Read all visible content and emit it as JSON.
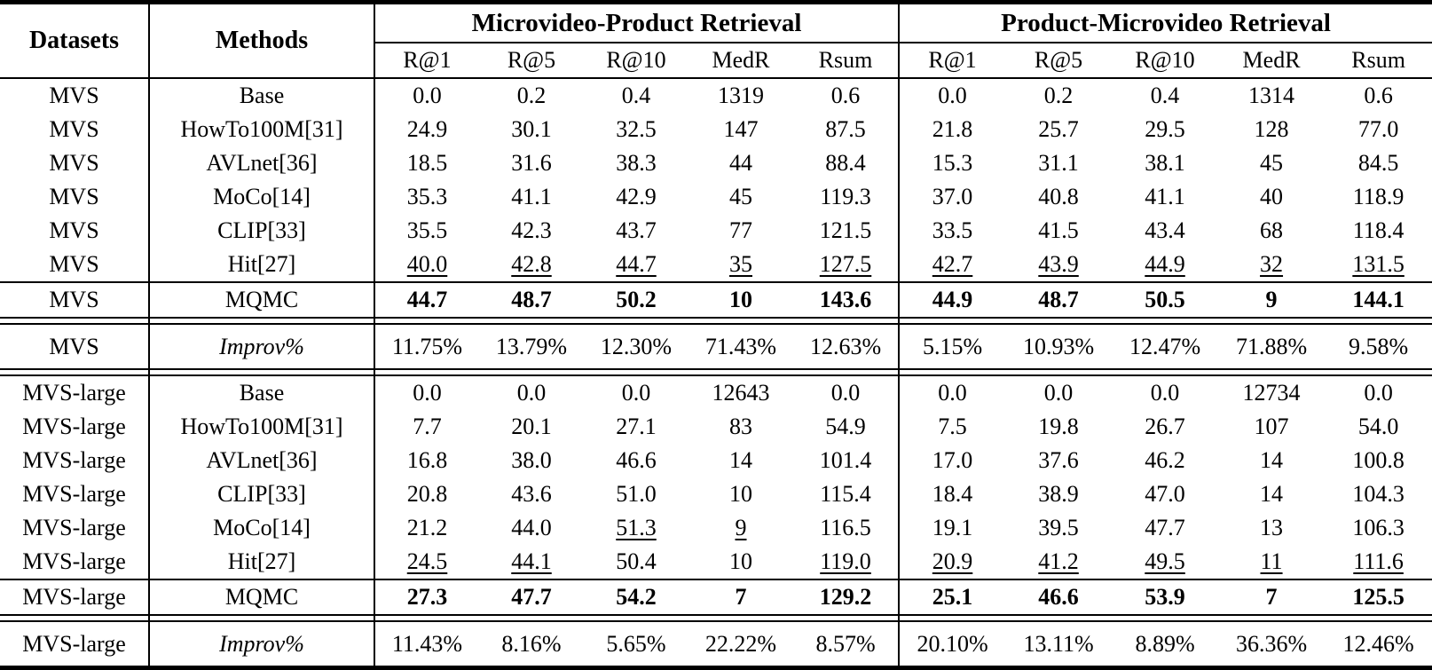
{
  "table": {
    "header": {
      "datasets": "Datasets",
      "methods": "Methods",
      "groups": [
        {
          "title": "Microvideo-Product Retrieval",
          "subcols": [
            "R@1",
            "R@5",
            "R@10",
            "MedR",
            "Rsum"
          ]
        },
        {
          "title": "Product-Microvideo Retrieval",
          "subcols": [
            "R@1",
            "R@5",
            "R@10",
            "MedR",
            "Rsum"
          ]
        }
      ]
    },
    "text_color": "#000000",
    "background_color": "#ffffff",
    "sections": [
      {
        "name": "MVS",
        "rows": [
          {
            "dataset": "MVS",
            "method": "Base",
            "kind": "data",
            "values": [
              "0.0",
              "0.2",
              "0.4",
              "1319",
              "0.6",
              "0.0",
              "0.2",
              "0.4",
              "1314",
              "0.6"
            ]
          },
          {
            "dataset": "MVS",
            "method": "HowTo100M[31]",
            "kind": "data",
            "values": [
              "24.9",
              "30.1",
              "32.5",
              "147",
              "87.5",
              "21.8",
              "25.7",
              "29.5",
              "128",
              "77.0"
            ]
          },
          {
            "dataset": "MVS",
            "method": "AVLnet[36]",
            "kind": "data",
            "values": [
              "18.5",
              "31.6",
              "38.3",
              "44",
              "88.4",
              "15.3",
              "31.1",
              "38.1",
              "45",
              "84.5"
            ]
          },
          {
            "dataset": "MVS",
            "method": "MoCo[14]",
            "kind": "data",
            "values": [
              "35.3",
              "41.1",
              "42.9",
              "45",
              "119.3",
              "37.0",
              "40.8",
              "41.1",
              "40",
              "118.9"
            ]
          },
          {
            "dataset": "MVS",
            "method": "CLIP[33]",
            "kind": "data",
            "values": [
              "35.5",
              "42.3",
              "43.7",
              "77",
              "121.5",
              "33.5",
              "41.5",
              "43.4",
              "68",
              "118.4"
            ]
          },
          {
            "dataset": "MVS",
            "method": "Hit[27]",
            "kind": "data",
            "values": [
              "40.0",
              "42.8",
              "44.7",
              "35",
              "127.5",
              "42.7",
              "43.9",
              "44.9",
              "32",
              "131.5"
            ],
            "underline": [
              0,
              1,
              2,
              3,
              4,
              5,
              6,
              7,
              8,
              9
            ]
          },
          {
            "dataset": "MVS",
            "method": "MQMC",
            "kind": "best",
            "values": [
              "44.7",
              "48.7",
              "50.2",
              "10",
              "143.6",
              "44.9",
              "48.7",
              "50.5",
              "9",
              "144.1"
            ]
          },
          {
            "dataset": "MVS",
            "method": "Improv%",
            "kind": "improv",
            "values": [
              "11.75%",
              "13.79%",
              "12.30%",
              "71.43%",
              "12.63%",
              "5.15%",
              "10.93%",
              "12.47%",
              "71.88%",
              "9.58%"
            ]
          }
        ]
      },
      {
        "name": "MVS-large",
        "rows": [
          {
            "dataset": "MVS-large",
            "method": "Base",
            "kind": "data",
            "values": [
              "0.0",
              "0.0",
              "0.0",
              "12643",
              "0.0",
              "0.0",
              "0.0",
              "0.0",
              "12734",
              "0.0"
            ]
          },
          {
            "dataset": "MVS-large",
            "method": "HowTo100M[31]",
            "kind": "data",
            "values": [
              "7.7",
              "20.1",
              "27.1",
              "83",
              "54.9",
              "7.5",
              "19.8",
              "26.7",
              "107",
              "54.0"
            ]
          },
          {
            "dataset": "MVS-large",
            "method": "AVLnet[36]",
            "kind": "data",
            "values": [
              "16.8",
              "38.0",
              "46.6",
              "14",
              "101.4",
              "17.0",
              "37.6",
              "46.2",
              "14",
              "100.8"
            ]
          },
          {
            "dataset": "MVS-large",
            "method": "CLIP[33]",
            "kind": "data",
            "values": [
              "20.8",
              "43.6",
              "51.0",
              "10",
              "115.4",
              "18.4",
              "38.9",
              "47.0",
              "14",
              "104.3"
            ]
          },
          {
            "dataset": "MVS-large",
            "method": "MoCo[14]",
            "kind": "data",
            "values": [
              "21.2",
              "44.0",
              "51.3",
              "9",
              "116.5",
              "19.1",
              "39.5",
              "47.7",
              "13",
              "106.3"
            ],
            "underline": [
              2,
              3
            ]
          },
          {
            "dataset": "MVS-large",
            "method": "Hit[27]",
            "kind": "data",
            "values": [
              "24.5",
              "44.1",
              "50.4",
              "10",
              "119.0",
              "20.9",
              "41.2",
              "49.5",
              "11",
              "111.6"
            ],
            "underline": [
              0,
              1,
              4,
              5,
              6,
              7,
              8,
              9
            ]
          },
          {
            "dataset": "MVS-large",
            "method": "MQMC",
            "kind": "best",
            "values": [
              "27.3",
              "47.7",
              "54.2",
              "7",
              "129.2",
              "25.1",
              "46.6",
              "53.9",
              "7",
              "125.5"
            ]
          },
          {
            "dataset": "MVS-large",
            "method": "Improv%",
            "kind": "improv",
            "values": [
              "11.43%",
              "8.16%",
              "5.65%",
              "22.22%",
              "8.57%",
              "20.10%",
              "13.11%",
              "8.89%",
              "36.36%",
              "12.46%"
            ]
          }
        ]
      }
    ]
  }
}
